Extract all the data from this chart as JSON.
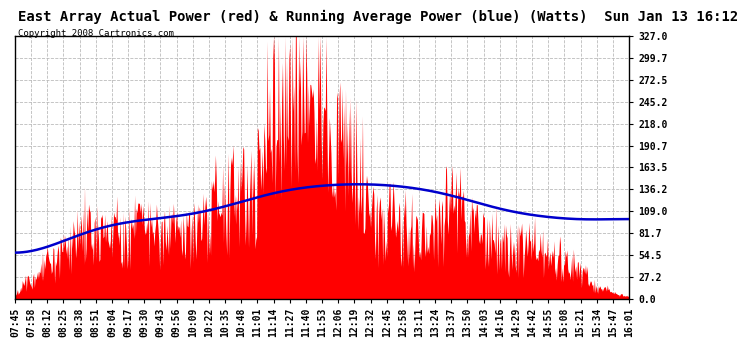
{
  "title": "East Array Actual Power (red) & Running Average Power (blue) (Watts)  Sun Jan 13 16:12",
  "copyright": "Copyright 2008 Cartronics.com",
  "yticks": [
    0.0,
    27.2,
    54.5,
    81.7,
    109.0,
    136.2,
    163.5,
    190.7,
    218.0,
    245.2,
    272.5,
    299.7,
    327.0
  ],
  "ylim": [
    0.0,
    327.0
  ],
  "xtick_labels": [
    "07:45",
    "07:58",
    "08:12",
    "08:25",
    "08:38",
    "08:51",
    "09:04",
    "09:17",
    "09:30",
    "09:43",
    "09:56",
    "10:09",
    "10:22",
    "10:35",
    "10:48",
    "11:01",
    "11:14",
    "11:27",
    "11:40",
    "11:53",
    "12:06",
    "12:19",
    "12:32",
    "12:45",
    "12:58",
    "13:11",
    "13:24",
    "13:37",
    "13:50",
    "14:03",
    "14:16",
    "14:29",
    "14:42",
    "14:55",
    "15:08",
    "15:21",
    "15:34",
    "15:47",
    "16:01"
  ],
  "background_color": "#ffffff",
  "grid_color": "#bbbbbb",
  "actual_color": "#ff0000",
  "avg_color": "#0000cc",
  "title_fontsize": 10,
  "tick_fontsize": 7,
  "n_ticks": 39,
  "avg_values": [
    40,
    52,
    62,
    72,
    82,
    92,
    95,
    97,
    99,
    100,
    101,
    103,
    107,
    113,
    120,
    128,
    135,
    138,
    140,
    142,
    143,
    144,
    144,
    143,
    141,
    138,
    135,
    132,
    125,
    115,
    108,
    105,
    103,
    101,
    99,
    97,
    95,
    93,
    115
  ],
  "envelope_values": [
    5,
    35,
    55,
    70,
    110,
    115,
    100,
    110,
    115,
    105,
    105,
    110,
    130,
    150,
    175,
    200,
    230,
    270,
    290,
    260,
    200,
    175,
    130,
    115,
    110,
    100,
    100,
    155,
    120,
    100,
    90,
    85,
    80,
    75,
    60,
    40,
    20,
    10,
    3
  ]
}
